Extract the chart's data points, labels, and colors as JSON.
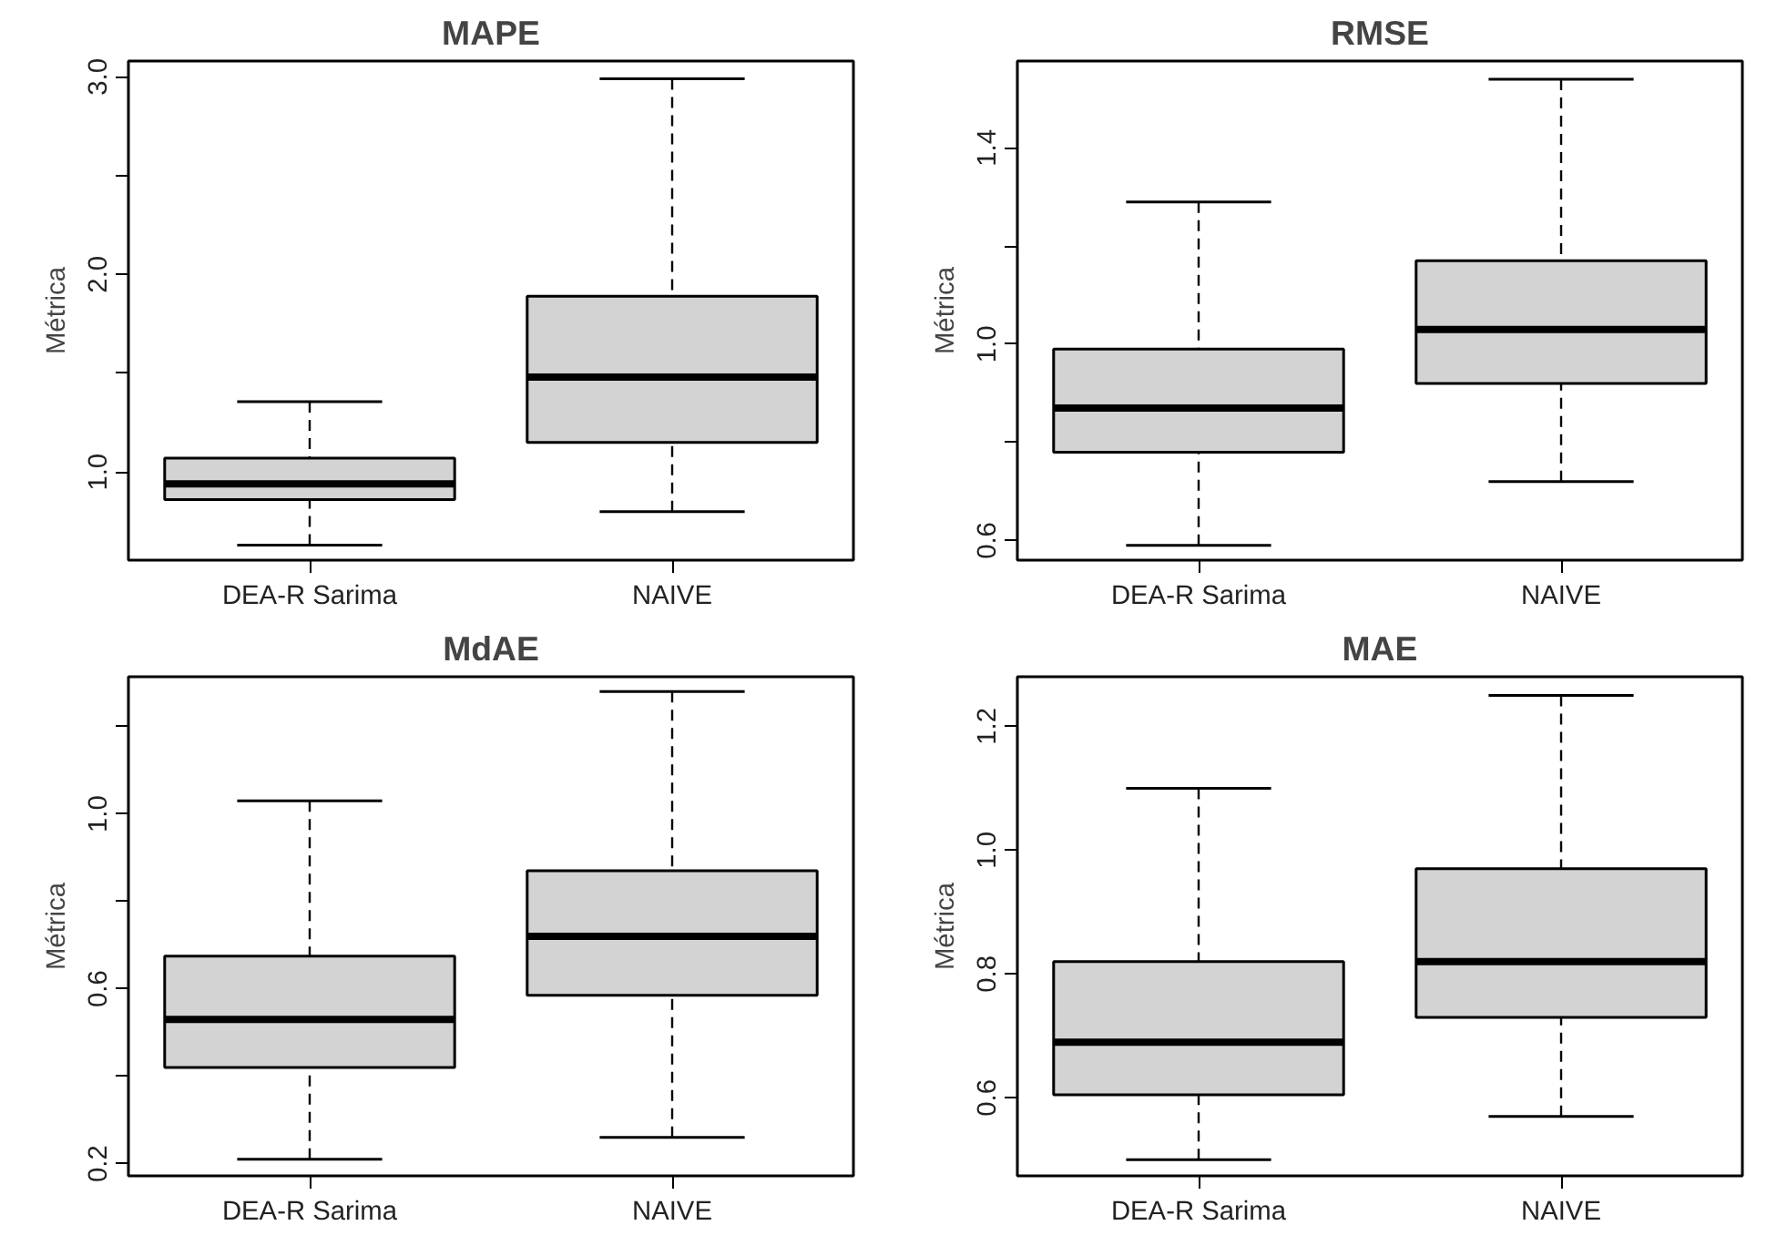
{
  "chart_data": [
    {
      "type": "box",
      "title": "MAPE",
      "ylabel": "Métrica",
      "categories": [
        "DEA-R Sarima",
        "NAIVE"
      ],
      "ylim": [
        0.554,
        3.08
      ],
      "yticks": [
        {
          "value": 1.0,
          "label": "1.0"
        },
        {
          "value": 1.5,
          "label": null
        },
        {
          "value": 2.0,
          "label": "2.0"
        },
        {
          "value": 2.5,
          "label": null
        },
        {
          "value": 3.0,
          "label": "3.0"
        }
      ],
      "grid": false,
      "boxes": [
        {
          "low": 0.63,
          "q1": 0.86,
          "median": 0.94,
          "q3": 1.07,
          "high": 1.356
        },
        {
          "low": 0.8,
          "q1": 1.15,
          "median": 1.48,
          "q3": 1.89,
          "high": 2.99
        }
      ],
      "color": "#d3d3d3"
    },
    {
      "type": "box",
      "title": "RMSE",
      "ylabel": "Métrica",
      "categories": [
        "DEA-R Sarima",
        "NAIVE"
      ],
      "ylim": [
        0.56,
        1.577
      ],
      "yticks": [
        0.6,
        {
          "value": 0.8,
          "label": null
        },
        {
          "value": 1.0,
          "label": "1.0"
        },
        {
          "value": 1.2,
          "label": null
        },
        1.4
      ],
      "grid": false,
      "boxes": [
        {
          "low": 0.59,
          "q1": 0.78,
          "median": 0.87,
          "q3": 0.99,
          "high": 1.29
        },
        {
          "low": 0.72,
          "q1": 0.92,
          "median": 1.03,
          "q3": 1.17,
          "high": 1.54
        }
      ],
      "color": "#d3d3d3"
    },
    {
      "type": "box",
      "title": "MdAE",
      "ylabel": "Métrica",
      "categories": [
        "DEA-R Sarima",
        "NAIVE"
      ],
      "ylim": [
        0.172,
        1.314
      ],
      "yticks": [
        0.2,
        {
          "value": 0.4,
          "label": null
        },
        0.6,
        {
          "value": 0.8,
          "label": null
        },
        {
          "value": 1.0,
          "label": "1.0"
        },
        {
          "value": 1.2,
          "label": null
        }
      ],
      "grid": false,
      "boxes": [
        {
          "low": 0.21,
          "q1": 0.42,
          "median": 0.53,
          "q3": 0.675,
          "high": 1.03
        },
        {
          "low": 0.26,
          "q1": 0.585,
          "median": 0.72,
          "q3": 0.87,
          "high": 1.28
        }
      ],
      "color": "#d3d3d3"
    },
    {
      "type": "box",
      "title": "MAE",
      "ylabel": "Métrica",
      "categories": [
        "DEA-R Sarima",
        "NAIVE"
      ],
      "ylim": [
        0.474,
        1.28
      ],
      "yticks": [
        0.6,
        0.8,
        {
          "value": 1.0,
          "label": "1.0"
        },
        1.2
      ],
      "grid": false,
      "boxes": [
        {
          "low": 0.5,
          "q1": 0.605,
          "median": 0.69,
          "q3": 0.82,
          "high": 1.1
        },
        {
          "low": 0.57,
          "q1": 0.73,
          "median": 0.82,
          "q3": 0.97,
          "high": 1.25
        }
      ],
      "color": "#d3d3d3"
    }
  ]
}
